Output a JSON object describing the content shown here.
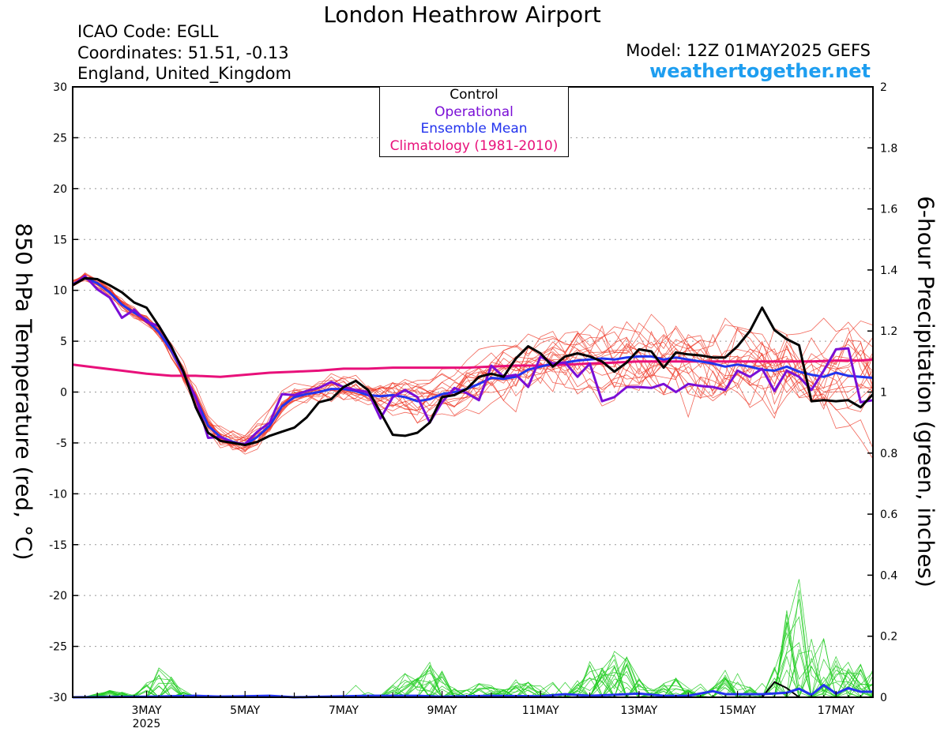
{
  "header": {
    "title": "London Heathrow Airport",
    "icao": "ICAO Code: EGLL",
    "coordinates": "Coordinates: 51.51, -0.13",
    "region": "England, United_Kingdom",
    "model": "Model: 12Z 01MAY2025 GEFS",
    "brand": "weathertogether.net"
  },
  "colors": {
    "control": "#000000",
    "operational": "#7a0ed6",
    "ensemble_mean": "#2233ee",
    "climatology": "#e8107a",
    "members_temp": "#ee3322",
    "members_precip": "#22cc22",
    "brand": "#1e9ef0"
  },
  "chart_data": {
    "type": "line",
    "xlabel": "",
    "ylabel": "850 hPa Temperature (red, °C)",
    "ylabel_right": "6-hour Precipitation (green, inches)",
    "x_range_days": [
      1.5,
      17.75
    ],
    "x_ticks": [
      {
        "day": 3,
        "label": "3MAY",
        "sub": "2025"
      },
      {
        "day": 5,
        "label": "5MAY"
      },
      {
        "day": 7,
        "label": "7MAY"
      },
      {
        "day": 9,
        "label": "9MAY"
      },
      {
        "day": 11,
        "label": "11MAY"
      },
      {
        "day": 13,
        "label": "13MAY"
      },
      {
        "day": 15,
        "label": "15MAY"
      },
      {
        "day": 17,
        "label": "17MAY"
      }
    ],
    "ylim": [
      -30,
      30
    ],
    "y_ticks": [
      "-30",
      "-25",
      "-20",
      "-15",
      "-10",
      "-5",
      "0",
      "5",
      "10",
      "15",
      "20",
      "25",
      "30"
    ],
    "ylim_right": [
      0,
      2
    ],
    "y_ticks_right": [
      "0",
      "0.2",
      "0.4",
      "0.6",
      "0.8",
      "1",
      "1.2",
      "1.4",
      "1.6",
      "1.8",
      "2"
    ],
    "grid": true,
    "legend": {
      "position": "top-center",
      "entries": [
        {
          "label": "Control",
          "color": "#000000"
        },
        {
          "label": "Operational",
          "color": "#7a0ed6"
        },
        {
          "label": "Ensemble Mean",
          "color": "#2233ee"
        },
        {
          "label": "Climatology (1981-2010)",
          "color": "#e8107a"
        }
      ]
    },
    "series": [
      {
        "name": "Control",
        "axis": "left",
        "points": [
          [
            1.5,
            10.5
          ],
          [
            1.75,
            11.2
          ],
          [
            2.0,
            11.1
          ],
          [
            2.25,
            10.5
          ],
          [
            2.5,
            9.8
          ],
          [
            2.75,
            8.8
          ],
          [
            3.0,
            8.3
          ],
          [
            3.25,
            6.5
          ],
          [
            3.5,
            4.5
          ],
          [
            3.75,
            2.0
          ],
          [
            4.0,
            -1.5
          ],
          [
            4.25,
            -4.0
          ],
          [
            4.5,
            -4.8
          ],
          [
            4.75,
            -5.0
          ],
          [
            5.0,
            -5.2
          ],
          [
            5.25,
            -4.9
          ],
          [
            5.5,
            -4.3
          ],
          [
            5.75,
            -3.9
          ],
          [
            6.0,
            -3.5
          ],
          [
            6.25,
            -2.5
          ],
          [
            6.5,
            -1.0
          ],
          [
            6.75,
            -0.7
          ],
          [
            7.0,
            0.5
          ],
          [
            7.25,
            1.1
          ],
          [
            7.5,
            0.2
          ],
          [
            7.75,
            -2.0
          ],
          [
            8.0,
            -4.2
          ],
          [
            8.25,
            -4.3
          ],
          [
            8.5,
            -4.0
          ],
          [
            8.75,
            -3.0
          ],
          [
            9.0,
            -0.5
          ],
          [
            9.25,
            -0.3
          ],
          [
            9.5,
            0.3
          ],
          [
            9.75,
            1.5
          ],
          [
            10.0,
            1.8
          ],
          [
            10.25,
            1.5
          ],
          [
            10.5,
            3.3
          ],
          [
            10.75,
            4.5
          ],
          [
            11.0,
            3.8
          ],
          [
            11.25,
            2.5
          ],
          [
            11.5,
            3.5
          ],
          [
            11.75,
            3.8
          ],
          [
            12.0,
            3.5
          ],
          [
            12.25,
            3.0
          ],
          [
            12.5,
            2.0
          ],
          [
            12.75,
            2.9
          ],
          [
            13.0,
            4.2
          ],
          [
            13.25,
            4.0
          ],
          [
            13.5,
            2.4
          ],
          [
            13.75,
            3.9
          ],
          [
            14.0,
            3.7
          ],
          [
            14.25,
            3.6
          ],
          [
            14.5,
            3.4
          ],
          [
            14.75,
            3.4
          ],
          [
            15.0,
            4.5
          ],
          [
            15.25,
            6.0
          ],
          [
            15.5,
            8.3
          ],
          [
            15.75,
            6.1
          ],
          [
            16.0,
            5.2
          ],
          [
            16.25,
            4.6
          ],
          [
            16.5,
            -0.9
          ],
          [
            16.75,
            -0.8
          ],
          [
            17.0,
            -0.9
          ],
          [
            17.25,
            -0.8
          ],
          [
            17.5,
            -1.5
          ],
          [
            17.75,
            -0.2
          ]
        ]
      },
      {
        "name": "Operational",
        "axis": "left",
        "points": [
          [
            1.5,
            10.5
          ],
          [
            1.75,
            11.4
          ],
          [
            2.0,
            10.1
          ],
          [
            2.25,
            9.3
          ],
          [
            2.5,
            7.3
          ],
          [
            2.75,
            8.1
          ],
          [
            3.0,
            6.9
          ],
          [
            3.25,
            6.5
          ],
          [
            3.5,
            4.4
          ],
          [
            3.75,
            1.8
          ],
          [
            4.0,
            -0.5
          ],
          [
            4.25,
            -4.5
          ],
          [
            4.5,
            -4.4
          ],
          [
            4.75,
            -5.0
          ],
          [
            5.0,
            -5.1
          ],
          [
            5.25,
            -3.9
          ],
          [
            5.5,
            -3.0
          ],
          [
            5.75,
            -0.2
          ],
          [
            6.0,
            -0.3
          ],
          [
            6.25,
            0.1
          ],
          [
            6.5,
            0.4
          ],
          [
            6.75,
            1.0
          ],
          [
            7.0,
            0.5
          ],
          [
            7.25,
            0.2
          ],
          [
            7.5,
            0.0
          ],
          [
            7.75,
            -2.6
          ],
          [
            8.0,
            -0.5
          ],
          [
            8.25,
            0.2
          ],
          [
            8.5,
            -0.5
          ],
          [
            8.75,
            -3.0
          ],
          [
            9.0,
            -1.0
          ],
          [
            9.25,
            0.4
          ],
          [
            9.5,
            -0.1
          ],
          [
            9.75,
            -0.8
          ],
          [
            10.0,
            2.6
          ],
          [
            10.25,
            1.5
          ],
          [
            10.5,
            1.7
          ],
          [
            10.75,
            0.5
          ],
          [
            11.0,
            3.5
          ],
          [
            11.25,
            2.8
          ],
          [
            11.5,
            2.9
          ],
          [
            11.75,
            1.5
          ],
          [
            12.0,
            2.8
          ],
          [
            12.25,
            -0.9
          ],
          [
            12.5,
            -0.5
          ],
          [
            12.75,
            0.5
          ],
          [
            13.0,
            0.5
          ],
          [
            13.25,
            0.4
          ],
          [
            13.5,
            0.8
          ],
          [
            13.75,
            0.0
          ],
          [
            14.0,
            0.8
          ],
          [
            14.25,
            0.6
          ],
          [
            14.5,
            0.5
          ],
          [
            14.75,
            0.2
          ],
          [
            15.0,
            2.1
          ],
          [
            15.25,
            1.5
          ],
          [
            15.5,
            2.3
          ],
          [
            15.75,
            0.1
          ],
          [
            16.0,
            2.1
          ],
          [
            16.25,
            1.5
          ],
          [
            16.5,
            0.2
          ],
          [
            16.75,
            2.1
          ],
          [
            17.0,
            4.2
          ],
          [
            17.25,
            4.3
          ],
          [
            17.5,
            -1.0
          ],
          [
            17.75,
            -0.8
          ]
        ]
      },
      {
        "name": "Ensemble Mean",
        "axis": "left",
        "points": [
          [
            1.5,
            10.6
          ],
          [
            1.75,
            11.2
          ],
          [
            2.0,
            10.7
          ],
          [
            2.25,
            9.8
          ],
          [
            2.5,
            8.6
          ],
          [
            2.75,
            7.8
          ],
          [
            3.0,
            7.1
          ],
          [
            3.25,
            5.9
          ],
          [
            3.5,
            4.1
          ],
          [
            3.75,
            1.8
          ],
          [
            4.0,
            -0.6
          ],
          [
            4.25,
            -3.3
          ],
          [
            4.5,
            -4.4
          ],
          [
            4.75,
            -4.9
          ],
          [
            5.0,
            -5.2
          ],
          [
            5.25,
            -4.4
          ],
          [
            5.5,
            -3.3
          ],
          [
            5.75,
            -1.4
          ],
          [
            6.0,
            -0.5
          ],
          [
            6.25,
            -0.2
          ],
          [
            6.5,
            0.0
          ],
          [
            6.75,
            0.3
          ],
          [
            7.0,
            0.3
          ],
          [
            7.25,
            0.1
          ],
          [
            7.5,
            -0.3
          ],
          [
            7.75,
            -0.4
          ],
          [
            8.0,
            -0.3
          ],
          [
            8.25,
            -0.5
          ],
          [
            8.5,
            -0.9
          ],
          [
            8.75,
            -0.7
          ],
          [
            9.0,
            -0.2
          ],
          [
            9.25,
            0.0
          ],
          [
            9.5,
            0.3
          ],
          [
            9.75,
            0.8
          ],
          [
            10.0,
            1.4
          ],
          [
            10.25,
            1.3
          ],
          [
            10.5,
            1.5
          ],
          [
            10.75,
            2.2
          ],
          [
            11.0,
            2.5
          ],
          [
            11.25,
            2.8
          ],
          [
            11.5,
            2.9
          ],
          [
            11.75,
            3.1
          ],
          [
            12.0,
            3.2
          ],
          [
            12.25,
            3.3
          ],
          [
            12.5,
            3.2
          ],
          [
            12.75,
            3.4
          ],
          [
            13.0,
            3.5
          ],
          [
            13.25,
            3.5
          ],
          [
            13.5,
            3.2
          ],
          [
            13.75,
            3.4
          ],
          [
            14.0,
            3.2
          ],
          [
            14.25,
            3.0
          ],
          [
            14.5,
            2.8
          ],
          [
            14.75,
            2.5
          ],
          [
            15.0,
            2.7
          ],
          [
            15.25,
            2.5
          ],
          [
            15.5,
            2.2
          ],
          [
            15.75,
            2.1
          ],
          [
            16.0,
            2.5
          ],
          [
            16.25,
            2.0
          ],
          [
            16.5,
            1.7
          ],
          [
            16.75,
            1.5
          ],
          [
            17.0,
            1.9
          ],
          [
            17.25,
            1.6
          ],
          [
            17.5,
            1.5
          ],
          [
            17.75,
            1.4
          ]
        ]
      },
      {
        "name": "Climatology (1981-2010)",
        "axis": "left",
        "points": [
          [
            1.5,
            2.7
          ],
          [
            2.0,
            2.4
          ],
          [
            2.5,
            2.1
          ],
          [
            3.0,
            1.8
          ],
          [
            3.5,
            1.6
          ],
          [
            4.0,
            1.6
          ],
          [
            4.5,
            1.5
          ],
          [
            5.0,
            1.7
          ],
          [
            5.5,
            1.9
          ],
          [
            6.0,
            2.0
          ],
          [
            6.5,
            2.1
          ],
          [
            7.0,
            2.3
          ],
          [
            7.5,
            2.3
          ],
          [
            8.0,
            2.4
          ],
          [
            8.5,
            2.4
          ],
          [
            9.0,
            2.4
          ],
          [
            9.5,
            2.4
          ],
          [
            10.0,
            2.5
          ],
          [
            10.5,
            2.6
          ],
          [
            11.0,
            2.6
          ],
          [
            11.5,
            2.7
          ],
          [
            12.0,
            2.8
          ],
          [
            12.5,
            2.9
          ],
          [
            13.0,
            3.0
          ],
          [
            13.5,
            3.0
          ],
          [
            14.0,
            3.0
          ],
          [
            14.5,
            3.0
          ],
          [
            15.0,
            3.0
          ],
          [
            15.5,
            3.0
          ],
          [
            16.0,
            3.0
          ],
          [
            16.5,
            3.0
          ],
          [
            17.0,
            3.1
          ],
          [
            17.5,
            3.1
          ],
          [
            17.75,
            3.2
          ]
        ]
      },
      {
        "name": "Control precipitation",
        "axis": "right",
        "points": [
          [
            1.5,
            0
          ],
          [
            3.0,
            0
          ],
          [
            5.5,
            0.005
          ],
          [
            6.0,
            0
          ],
          [
            15.5,
            0
          ],
          [
            15.75,
            0.05
          ],
          [
            16.0,
            0.03
          ],
          [
            16.25,
            0
          ],
          [
            17.75,
            0
          ]
        ]
      },
      {
        "name": "Ensemble mean precipitation",
        "axis": "right",
        "points": [
          [
            1.5,
            0
          ],
          [
            3.0,
            0.002
          ],
          [
            4.0,
            0.005
          ],
          [
            4.5,
            0.002
          ],
          [
            5.5,
            0.005
          ],
          [
            6.0,
            0
          ],
          [
            7.5,
            0.005
          ],
          [
            8.5,
            0.005
          ],
          [
            9.0,
            0.002
          ],
          [
            10.0,
            0.005
          ],
          [
            11.0,
            0.003
          ],
          [
            11.5,
            0.01
          ],
          [
            12.0,
            0.005
          ],
          [
            12.5,
            0.008
          ],
          [
            13.0,
            0.012
          ],
          [
            13.5,
            0.005
          ],
          [
            14.0,
            0.005
          ],
          [
            14.5,
            0.02
          ],
          [
            14.75,
            0.01
          ],
          [
            15.5,
            0.01
          ],
          [
            16.0,
            0.015
          ],
          [
            16.25,
            0.028
          ],
          [
            16.5,
            0.008
          ],
          [
            16.75,
            0.04
          ],
          [
            17.0,
            0.012
          ],
          [
            17.25,
            0.03
          ],
          [
            17.5,
            0.018
          ],
          [
            17.75,
            0.018
          ]
        ]
      }
    ]
  }
}
